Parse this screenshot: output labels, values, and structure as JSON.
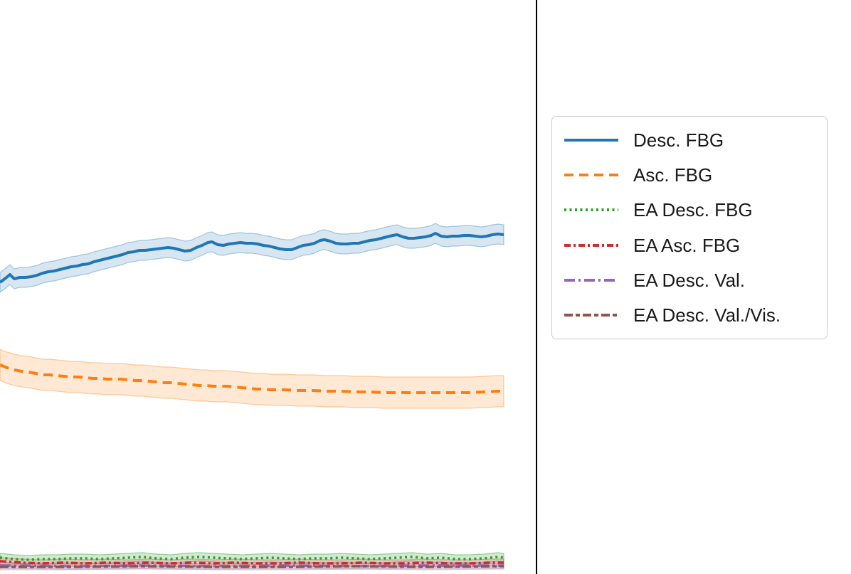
{
  "accent_colors": {
    "blue": "#1f77b4",
    "orange": "#ff7f0e",
    "green": "#2ca02c",
    "red": "#d62728",
    "purple": "#9467bd",
    "brown": "#8c564b",
    "spine": "#000000",
    "legend_border": "#cccccc",
    "legend_text": "#1a1a1a"
  },
  "legend": {
    "position": "outside-right",
    "items": [
      {
        "label": "Desc. FBG",
        "color": "#1f77b4",
        "style": "solid"
      },
      {
        "label": "Asc. FBG",
        "color": "#ff7f0e",
        "style": "dashed"
      },
      {
        "label": "EA Desc. FBG",
        "color": "#2ca02c",
        "style": "dotted"
      },
      {
        "label": "EA Asc. FBG",
        "color": "#d62728",
        "style": "dashdotdot"
      },
      {
        "label": "EA Desc. Val.",
        "color": "#9467bd",
        "style": "longdashdot"
      },
      {
        "label": "EA Desc. Val./Vis.",
        "color": "#8c564b",
        "style": "dashdashdot"
      }
    ]
  },
  "chart_data": {
    "type": "line",
    "title": "",
    "xlabel": "",
    "ylabel": "",
    "axis_tick_labels_visible": false,
    "coordinate_space": "figure_pixels_y_down",
    "legend_position": "outside right",
    "grid": false,
    "series": [
      {
        "name": "Desc. FBG",
        "color": "#1f77b4",
        "style": "solid",
        "line_width": 4,
        "band_half_width": 14,
        "band_opacity": 0.18,
        "points": [
          [
            0,
            397
          ],
          [
            8,
            391
          ],
          [
            14,
            386
          ],
          [
            20,
            392
          ],
          [
            28,
            390
          ],
          [
            36,
            390
          ],
          [
            44,
            389
          ],
          [
            52,
            387
          ],
          [
            60,
            384
          ],
          [
            68,
            382
          ],
          [
            76,
            381
          ],
          [
            84,
            379
          ],
          [
            92,
            377
          ],
          [
            100,
            375
          ],
          [
            108,
            374
          ],
          [
            116,
            372
          ],
          [
            124,
            371
          ],
          [
            132,
            368
          ],
          [
            140,
            366
          ],
          [
            148,
            364
          ],
          [
            156,
            362
          ],
          [
            164,
            360
          ],
          [
            172,
            358
          ],
          [
            180,
            355
          ],
          [
            188,
            354
          ],
          [
            196,
            352
          ],
          [
            204,
            352
          ],
          [
            212,
            351
          ],
          [
            220,
            350
          ],
          [
            228,
            349
          ],
          [
            236,
            348
          ],
          [
            244,
            349
          ],
          [
            252,
            351
          ],
          [
            260,
            353
          ],
          [
            268,
            352
          ],
          [
            276,
            348
          ],
          [
            284,
            345
          ],
          [
            292,
            341
          ],
          [
            298,
            340
          ],
          [
            306,
            344
          ],
          [
            314,
            345
          ],
          [
            322,
            343
          ],
          [
            330,
            342
          ],
          [
            338,
            341
          ],
          [
            346,
            342
          ],
          [
            354,
            342
          ],
          [
            362,
            343
          ],
          [
            370,
            345
          ],
          [
            378,
            346
          ],
          [
            386,
            348
          ],
          [
            394,
            350
          ],
          [
            402,
            351
          ],
          [
            410,
            351
          ],
          [
            418,
            348
          ],
          [
            426,
            345
          ],
          [
            434,
            344
          ],
          [
            442,
            342
          ],
          [
            450,
            338
          ],
          [
            456,
            337
          ],
          [
            464,
            339
          ],
          [
            472,
            342
          ],
          [
            480,
            343
          ],
          [
            488,
            343
          ],
          [
            496,
            342
          ],
          [
            504,
            342
          ],
          [
            512,
            340
          ],
          [
            520,
            338
          ],
          [
            528,
            337
          ],
          [
            536,
            335
          ],
          [
            544,
            333
          ],
          [
            552,
            331
          ],
          [
            558,
            330
          ],
          [
            566,
            333
          ],
          [
            574,
            335
          ],
          [
            582,
            335
          ],
          [
            590,
            334
          ],
          [
            598,
            333
          ],
          [
            606,
            331
          ],
          [
            612,
            328
          ],
          [
            620,
            332
          ],
          [
            628,
            333
          ],
          [
            636,
            332
          ],
          [
            644,
            332
          ],
          [
            652,
            331
          ],
          [
            660,
            331
          ],
          [
            668,
            332
          ],
          [
            676,
            333
          ],
          [
            684,
            332
          ],
          [
            692,
            330
          ],
          [
            700,
            329
          ],
          [
            708,
            330
          ]
        ]
      },
      {
        "name": "Asc. FBG",
        "color": "#ff7f0e",
        "style": "dashed",
        "line_width": 4,
        "band_half_width": 22,
        "band_opacity": 0.18,
        "points": [
          [
            0,
            513
          ],
          [
            10,
            517
          ],
          [
            20,
            520
          ],
          [
            30,
            522
          ],
          [
            40,
            523
          ],
          [
            50,
            525
          ],
          [
            60,
            527
          ],
          [
            70,
            527
          ],
          [
            80,
            528
          ],
          [
            90,
            529
          ],
          [
            100,
            530
          ],
          [
            110,
            530
          ],
          [
            120,
            531
          ],
          [
            130,
            532
          ],
          [
            140,
            532
          ],
          [
            150,
            533
          ],
          [
            160,
            533
          ],
          [
            170,
            533
          ],
          [
            180,
            534
          ],
          [
            190,
            535
          ],
          [
            200,
            535
          ],
          [
            210,
            536
          ],
          [
            220,
            537
          ],
          [
            230,
            538
          ],
          [
            240,
            538
          ],
          [
            250,
            539
          ],
          [
            260,
            540
          ],
          [
            270,
            541
          ],
          [
            280,
            542
          ],
          [
            290,
            542
          ],
          [
            300,
            543
          ],
          [
            310,
            543
          ],
          [
            320,
            543
          ],
          [
            330,
            544
          ],
          [
            340,
            545
          ],
          [
            350,
            546
          ],
          [
            360,
            547
          ],
          [
            370,
            547
          ],
          [
            380,
            548
          ],
          [
            390,
            548
          ],
          [
            400,
            548
          ],
          [
            420,
            549
          ],
          [
            440,
            549
          ],
          [
            460,
            550
          ],
          [
            480,
            550
          ],
          [
            500,
            551
          ],
          [
            520,
            551
          ],
          [
            540,
            552
          ],
          [
            560,
            552
          ],
          [
            580,
            552
          ],
          [
            600,
            552
          ],
          [
            620,
            552
          ],
          [
            640,
            552
          ],
          [
            660,
            552
          ],
          [
            680,
            551
          ],
          [
            700,
            550
          ],
          [
            708,
            550
          ]
        ]
      },
      {
        "name": "EA Desc. FBG",
        "color": "#2ca02c",
        "style": "dotted",
        "line_width": 3.5,
        "band_half_width": 6,
        "band_opacity": 0.22,
        "points": [
          [
            0,
            784
          ],
          [
            20,
            786
          ],
          [
            40,
            787
          ],
          [
            60,
            786
          ],
          [
            80,
            786
          ],
          [
            100,
            785
          ],
          [
            120,
            785
          ],
          [
            140,
            786
          ],
          [
            160,
            785
          ],
          [
            180,
            784
          ],
          [
            200,
            783
          ],
          [
            220,
            785
          ],
          [
            240,
            786
          ],
          [
            260,
            784
          ],
          [
            280,
            783
          ],
          [
            300,
            784
          ],
          [
            320,
            785
          ],
          [
            340,
            786
          ],
          [
            360,
            785
          ],
          [
            380,
            784
          ],
          [
            400,
            785
          ],
          [
            420,
            786
          ],
          [
            440,
            785
          ],
          [
            460,
            785
          ],
          [
            480,
            784
          ],
          [
            500,
            785
          ],
          [
            520,
            786
          ],
          [
            540,
            785
          ],
          [
            560,
            784
          ],
          [
            580,
            783
          ],
          [
            600,
            785
          ],
          [
            620,
            784
          ],
          [
            640,
            786
          ],
          [
            660,
            786
          ],
          [
            680,
            785
          ],
          [
            700,
            783
          ],
          [
            708,
            784
          ]
        ]
      },
      {
        "name": "EA Asc. FBG",
        "color": "#d62728",
        "style": "dashdotdot",
        "line_width": 3.5,
        "band_half_width": 5,
        "band_opacity": 0.15,
        "points": [
          [
            0,
            789
          ],
          [
            30,
            791
          ],
          [
            60,
            792
          ],
          [
            90,
            791
          ],
          [
            120,
            792
          ],
          [
            150,
            791
          ],
          [
            180,
            792
          ],
          [
            210,
            791
          ],
          [
            240,
            792
          ],
          [
            270,
            791
          ],
          [
            300,
            792
          ],
          [
            330,
            791
          ],
          [
            360,
            792
          ],
          [
            390,
            792
          ],
          [
            420,
            791
          ],
          [
            450,
            792
          ],
          [
            480,
            792
          ],
          [
            510,
            791
          ],
          [
            540,
            792
          ],
          [
            570,
            792
          ],
          [
            600,
            791
          ],
          [
            630,
            792
          ],
          [
            660,
            792
          ],
          [
            690,
            791
          ],
          [
            708,
            791
          ]
        ]
      },
      {
        "name": "EA Desc. Val.",
        "color": "#9467bd",
        "style": "longdashdot",
        "line_width": 3.5,
        "band_half_width": 4,
        "band_opacity": 0.15,
        "points": [
          [
            0,
            795
          ],
          [
            100,
            796
          ],
          [
            200,
            795
          ],
          [
            300,
            796
          ],
          [
            400,
            795
          ],
          [
            500,
            796
          ],
          [
            600,
            795
          ],
          [
            708,
            795
          ]
        ]
      },
      {
        "name": "EA Desc. Val./Vis.",
        "color": "#8c564b",
        "style": "dashdashdot",
        "line_width": 3.5,
        "band_half_width": 4,
        "band_opacity": 0.15,
        "points": [
          [
            0,
            797
          ],
          [
            100,
            797
          ],
          [
            200,
            796
          ],
          [
            300,
            797
          ],
          [
            400,
            797
          ],
          [
            500,
            796
          ],
          [
            600,
            797
          ],
          [
            708,
            796
          ]
        ]
      }
    ]
  }
}
